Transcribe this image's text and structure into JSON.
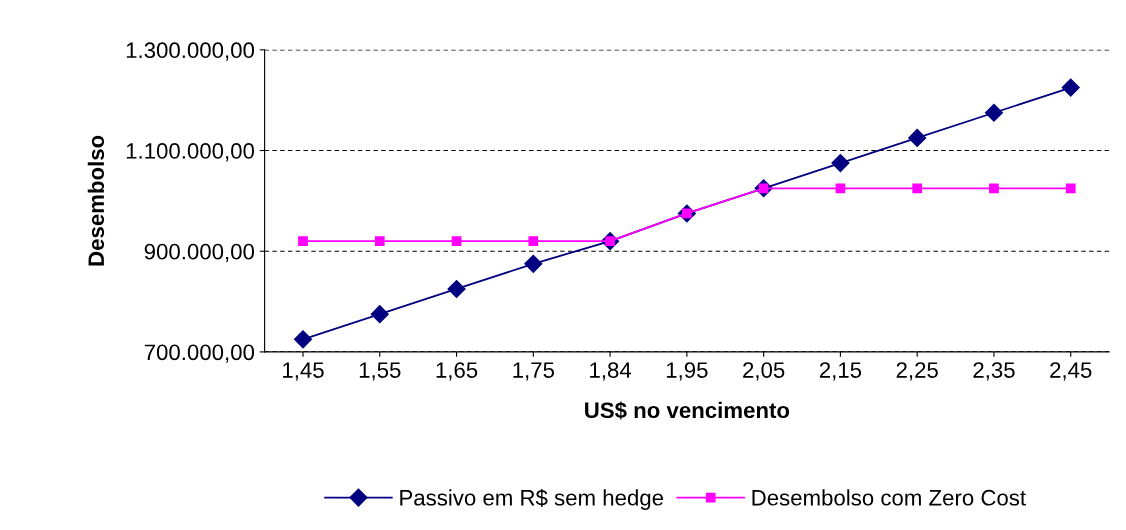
{
  "chart_data": {
    "type": "line",
    "xlabel": "US$ no vencimento",
    "ylabel": "Desembolso",
    "categories": [
      "1,45",
      "1,55",
      "1,65",
      "1,75",
      "1,84",
      "1,95",
      "2,05",
      "2,15",
      "2,25",
      "2,35",
      "2,45"
    ],
    "series": [
      {
        "name": "Passivo em R$ sem hedge",
        "color": "#000080",
        "marker": "diamond",
        "values": [
          725000,
          775000,
          825000,
          875000,
          920000,
          975000,
          1025000,
          1075000,
          1125000,
          1175000,
          1225000
        ]
      },
      {
        "name": "Desembolso com Zero Cost",
        "color": "#ff00ff",
        "marker": "square",
        "values": [
          920000,
          920000,
          920000,
          920000,
          920000,
          975000,
          1025000,
          1025000,
          1025000,
          1025000,
          1025000
        ]
      }
    ],
    "ylim": [
      700000,
      1300000
    ],
    "yticks": [
      {
        "value": 700000,
        "label": "700.000,00"
      },
      {
        "value": 900000,
        "label": "900.000,00"
      },
      {
        "value": 1100000,
        "label": "1.100.000,00"
      },
      {
        "value": 1300000,
        "label": "1.300.000,00"
      }
    ],
    "grid": "y",
    "legend": "bottom",
    "line_style": "solid"
  }
}
